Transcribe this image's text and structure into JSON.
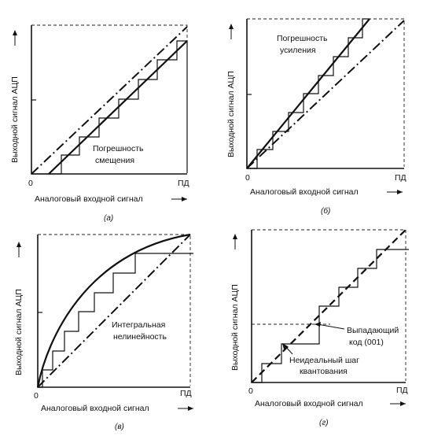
{
  "panels": [
    {
      "caption": "(а)",
      "x_axis_label": "Аналоговый входной сигнал",
      "y_axis_label": "Выходной сигнал АЦП",
      "origin_label": "0",
      "fullscale_label": "ПД",
      "annotation_lines": [
        "Погрешность",
        "смещения"
      ]
    },
    {
      "caption": "(б)",
      "x_axis_label": "Аналоговый входной сигнал",
      "y_axis_label": "Выходной сигнал АЦП",
      "origin_label": "0",
      "fullscale_label": "ПД",
      "annotation_lines": [
        "Погрешность",
        "усиления"
      ]
    },
    {
      "caption": "(в)",
      "x_axis_label": "Аналоговый входной сигнал",
      "y_axis_label": "Выходной сигнал АЦП",
      "origin_label": "0",
      "fullscale_label": "ПД",
      "annotation_lines": [
        "Интегральная",
        "нелинейность"
      ]
    },
    {
      "caption": "(г)",
      "x_axis_label": "Аналоговый входной сигнал",
      "y_axis_label": "Выходной сигнал АЦП",
      "origin_label": "0",
      "fullscale_label": "ПД",
      "annotation_lines": [
        "Выпадающий",
        "код (001)"
      ],
      "annotation2_lines": [
        "Неидеальный шаг",
        "квантования"
      ]
    }
  ]
}
